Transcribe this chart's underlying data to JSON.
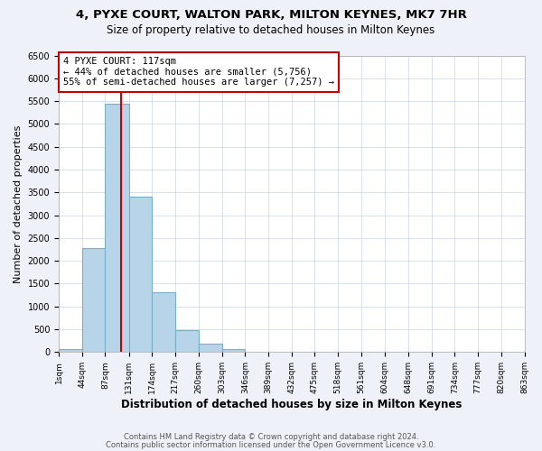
{
  "title": "4, PYXE COURT, WALTON PARK, MILTON KEYNES, MK7 7HR",
  "subtitle": "Size of property relative to detached houses in Milton Keynes",
  "xlabel": "Distribution of detached houses by size in Milton Keynes",
  "ylabel": "Number of detached properties",
  "bar_counts": [
    70,
    2280,
    5450,
    3400,
    1320,
    480,
    185,
    70,
    0,
    0,
    0,
    0,
    0,
    0,
    0,
    0,
    0,
    0,
    0,
    0
  ],
  "bin_edges": [
    1,
    44,
    87,
    131,
    174,
    217,
    260,
    303,
    346,
    389,
    432,
    475,
    518,
    561,
    604,
    648,
    691,
    734,
    777,
    820,
    863
  ],
  "tick_labels": [
    "1sqm",
    "44sqm",
    "87sqm",
    "131sqm",
    "174sqm",
    "217sqm",
    "260sqm",
    "303sqm",
    "346sqm",
    "389sqm",
    "432sqm",
    "475sqm",
    "518sqm",
    "561sqm",
    "604sqm",
    "648sqm",
    "691sqm",
    "734sqm",
    "777sqm",
    "820sqm",
    "863sqm"
  ],
  "bar_color": "#b8d4e8",
  "bar_edge_color": "#7aafc8",
  "property_line_x": 117,
  "annotation_text_line1": "4 PYXE COURT: 117sqm",
  "annotation_text_line2": "← 44% of detached houses are smaller (5,756)",
  "annotation_text_line3": "55% of semi-detached houses are larger (7,257) →",
  "annotation_box_color": "#ffffff",
  "annotation_box_edge": "#cc0000",
  "vline_color": "#cc0000",
  "ylim": [
    0,
    6500
  ],
  "yticks": [
    0,
    500,
    1000,
    1500,
    2000,
    2500,
    3000,
    3500,
    4000,
    4500,
    5000,
    5500,
    6000,
    6500
  ],
  "footer_line1": "Contains HM Land Registry data © Crown copyright and database right 2024.",
  "footer_line2": "Contains public sector information licensed under the Open Government Licence v3.0.",
  "background_color": "#eef2f8",
  "plot_background": "#ffffff",
  "grid_color": "#c8d4e4"
}
